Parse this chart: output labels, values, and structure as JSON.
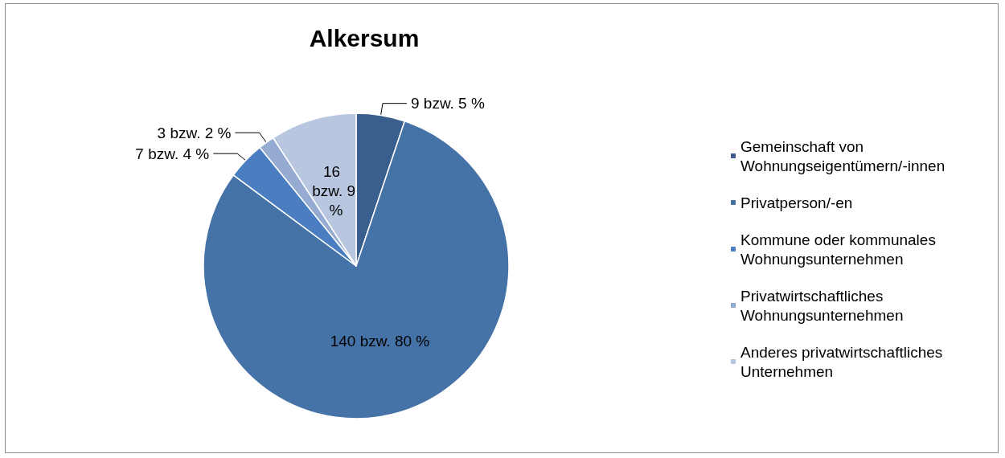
{
  "chart_data": {
    "type": "pie",
    "title": "Alkersum",
    "categories": [
      "Gemeinschaft von Wohnungseigentümern/-innen",
      "Privatperson/-en",
      "Kommune oder kommunales Wohnungsunternehmen",
      "Privatwirtschaftliches Wohnungsunternehmen",
      "Anderes privatwirtschaftliches Unternehmen"
    ],
    "values": [
      9,
      140,
      7,
      3,
      16
    ],
    "value_labels": [
      "9 bzw. 5 %",
      "140 bzw. 80 %",
      "7 bzw. 4 %",
      "3 bzw. 2 %",
      "16 bzw. 9 %"
    ],
    "colors": [
      "#3a5f8e",
      "#4572a7",
      "#4a7ec1",
      "#95abd2",
      "#b9c6df"
    ],
    "legend": "right"
  }
}
